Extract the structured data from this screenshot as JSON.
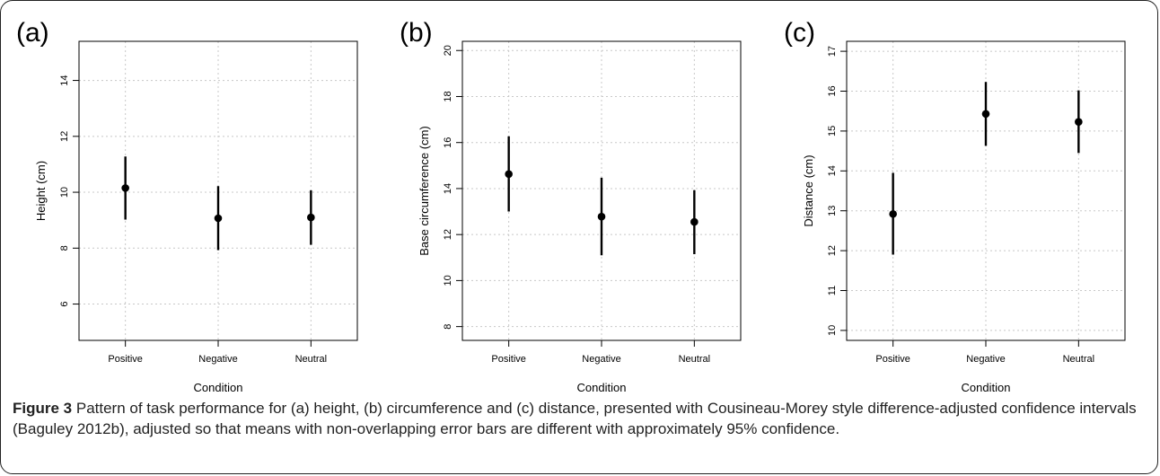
{
  "figure": {
    "caption_label": "Figure 3",
    "caption_text": "Pattern of task performance for (a) height, (b) circumference and (c) distance, presented with Cousineau-Morey style difference-adjusted confidence intervals (Baguley 2012b), adjusted so that means with non-overlapping error bars are different with approximately 95% confidence."
  },
  "chart_data": [
    {
      "type": "scatter",
      "panel_label": "(a)",
      "categories": [
        "Positive",
        "Negative",
        "Neutral"
      ],
      "xlabel": "Condition",
      "ylabel": "Height (cm)",
      "ylim": [
        4.7,
        15.4
      ],
      "yticks": [
        6,
        8,
        10,
        12,
        14
      ],
      "grid": true,
      "series": [
        {
          "values": [
            10.15,
            9.07,
            9.1
          ],
          "ci_lower": [
            9.02,
            7.93,
            8.12
          ],
          "ci_upper": [
            11.28,
            10.22,
            10.07
          ]
        }
      ]
    },
    {
      "type": "scatter",
      "panel_label": "(b)",
      "categories": [
        "Positive",
        "Negative",
        "Neutral"
      ],
      "xlabel": "Condition",
      "ylabel": "Base circumference (cm)",
      "ylim": [
        7.4,
        20.4
      ],
      "yticks": [
        8,
        10,
        12,
        14,
        16,
        18,
        20
      ],
      "grid": true,
      "series": [
        {
          "values": [
            14.63,
            12.78,
            12.55
          ],
          "ci_lower": [
            13.0,
            11.1,
            11.15
          ],
          "ci_upper": [
            16.27,
            14.47,
            13.93
          ]
        }
      ]
    },
    {
      "type": "scatter",
      "panel_label": "(c)",
      "categories": [
        "Positive",
        "Negative",
        "Neutral"
      ],
      "xlabel": "Condition",
      "ylabel": "Distance (cm)",
      "ylim": [
        9.75,
        17.25
      ],
      "yticks": [
        10,
        11,
        12,
        13,
        14,
        15,
        16,
        17
      ],
      "grid": true,
      "series": [
        {
          "values": [
            12.92,
            15.43,
            15.23
          ],
          "ci_lower": [
            11.9,
            14.63,
            14.45
          ],
          "ci_upper": [
            13.95,
            16.23,
            16.02
          ]
        }
      ]
    }
  ]
}
